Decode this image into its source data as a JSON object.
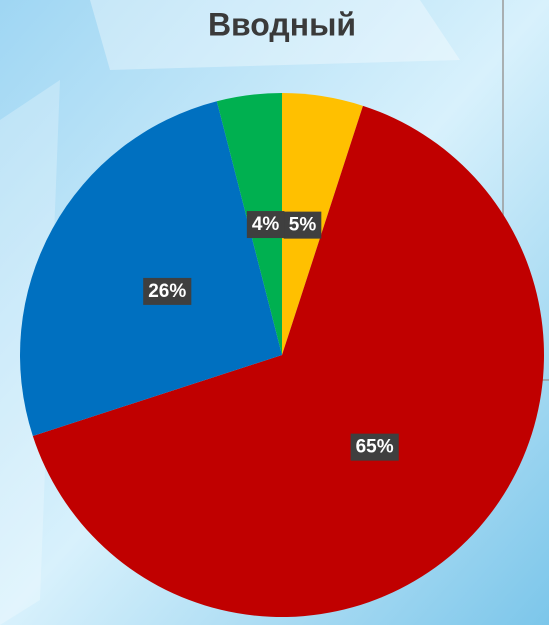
{
  "chart_data": {
    "type": "pie",
    "title": "Вводный",
    "categories": [
      null,
      null,
      null,
      null
    ],
    "values": [
      5,
      65,
      26,
      4
    ],
    "value_labels": [
      "5%",
      "65%",
      "26%",
      "4%"
    ],
    "colors": [
      "#ffc000",
      "#c00000",
      "#0070c0",
      "#00b050"
    ]
  }
}
